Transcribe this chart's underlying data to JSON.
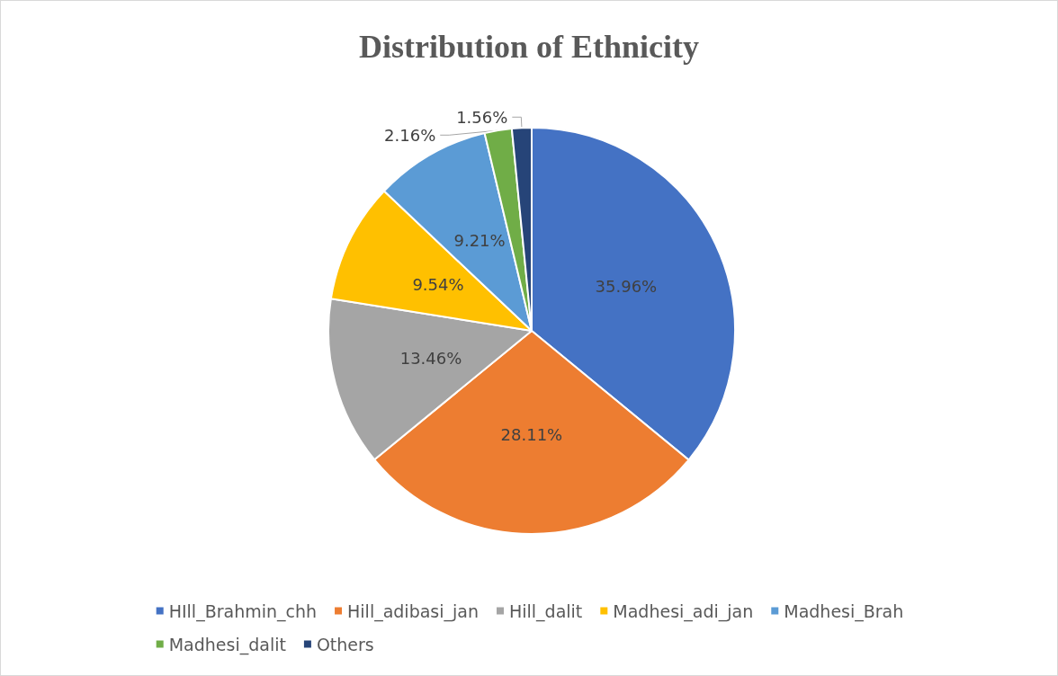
{
  "chart_data": {
    "type": "pie",
    "title": "Distribution of Ethnicity",
    "categories": [
      "HIll_Brahmin_chh",
      "Hill_adibasi_jan",
      "Hill_dalit",
      "Madhesi_adi_jan",
      "Madhesi_Brah",
      "Madhesi_dalit",
      "Others"
    ],
    "values": [
      35.96,
      28.11,
      13.46,
      9.54,
      9.21,
      2.16,
      1.56
    ],
    "value_labels": [
      "35.96%",
      "28.11%",
      "13.46%",
      "9.54%",
      "9.21%",
      "2.16%",
      "1.56%"
    ],
    "colors": [
      "#4472c4",
      "#ed7d31",
      "#a5a5a5",
      "#ffc000",
      "#5b9bd5",
      "#70ad47",
      "#264478"
    ],
    "legend": "bottom"
  }
}
